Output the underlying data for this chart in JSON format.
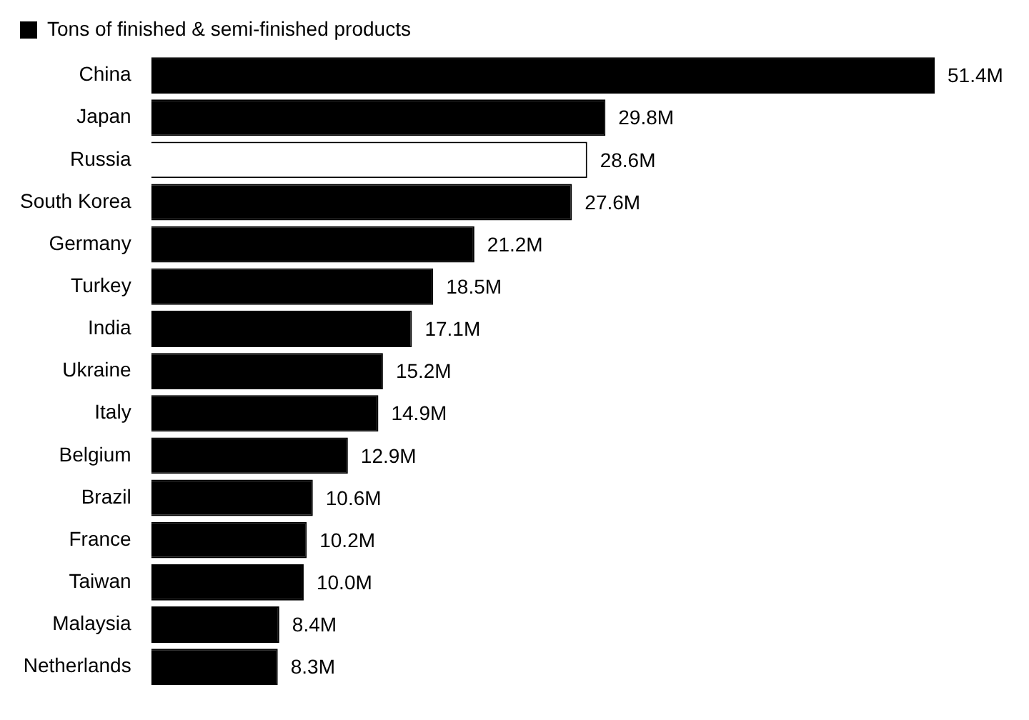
{
  "chart_data": {
    "type": "bar",
    "orientation": "horizontal",
    "legend": "top left",
    "categories": [
      "China",
      "Japan",
      "Russia",
      "South Korea",
      "Germany",
      "Turkey",
      "India",
      "Ukraine",
      "Italy",
      "Belgium",
      "Brazil",
      "France",
      "Taiwan",
      "Malaysia",
      "Netherlands"
    ],
    "series": [
      {
        "name": "Tons of finished & semi-finished products",
        "color": "#000000",
        "colors": [
          "#000000",
          "#000000",
          "#ffffff",
          "#000000",
          "#000000",
          "#000000",
          "#000000",
          "#000000",
          "#000000",
          "#000000",
          "#000000",
          "#000000",
          "#000000",
          "#000000",
          "#000000"
        ],
        "values": [
          51.4,
          29.8,
          28.6,
          27.6,
          21.2,
          18.5,
          17.1,
          15.2,
          14.9,
          12.9,
          10.6,
          10.2,
          10.0,
          8.4,
          8.3
        ],
        "value_labels": [
          "51.4M",
          "29.8M",
          "28.6M",
          "27.6M",
          "21.2M",
          "18.5M",
          "17.1M",
          "15.2M",
          "14.9M",
          "12.9M",
          "10.6M",
          "10.2M",
          "10.0M",
          "8.4M",
          "8.3M"
        ]
      }
    ]
  }
}
